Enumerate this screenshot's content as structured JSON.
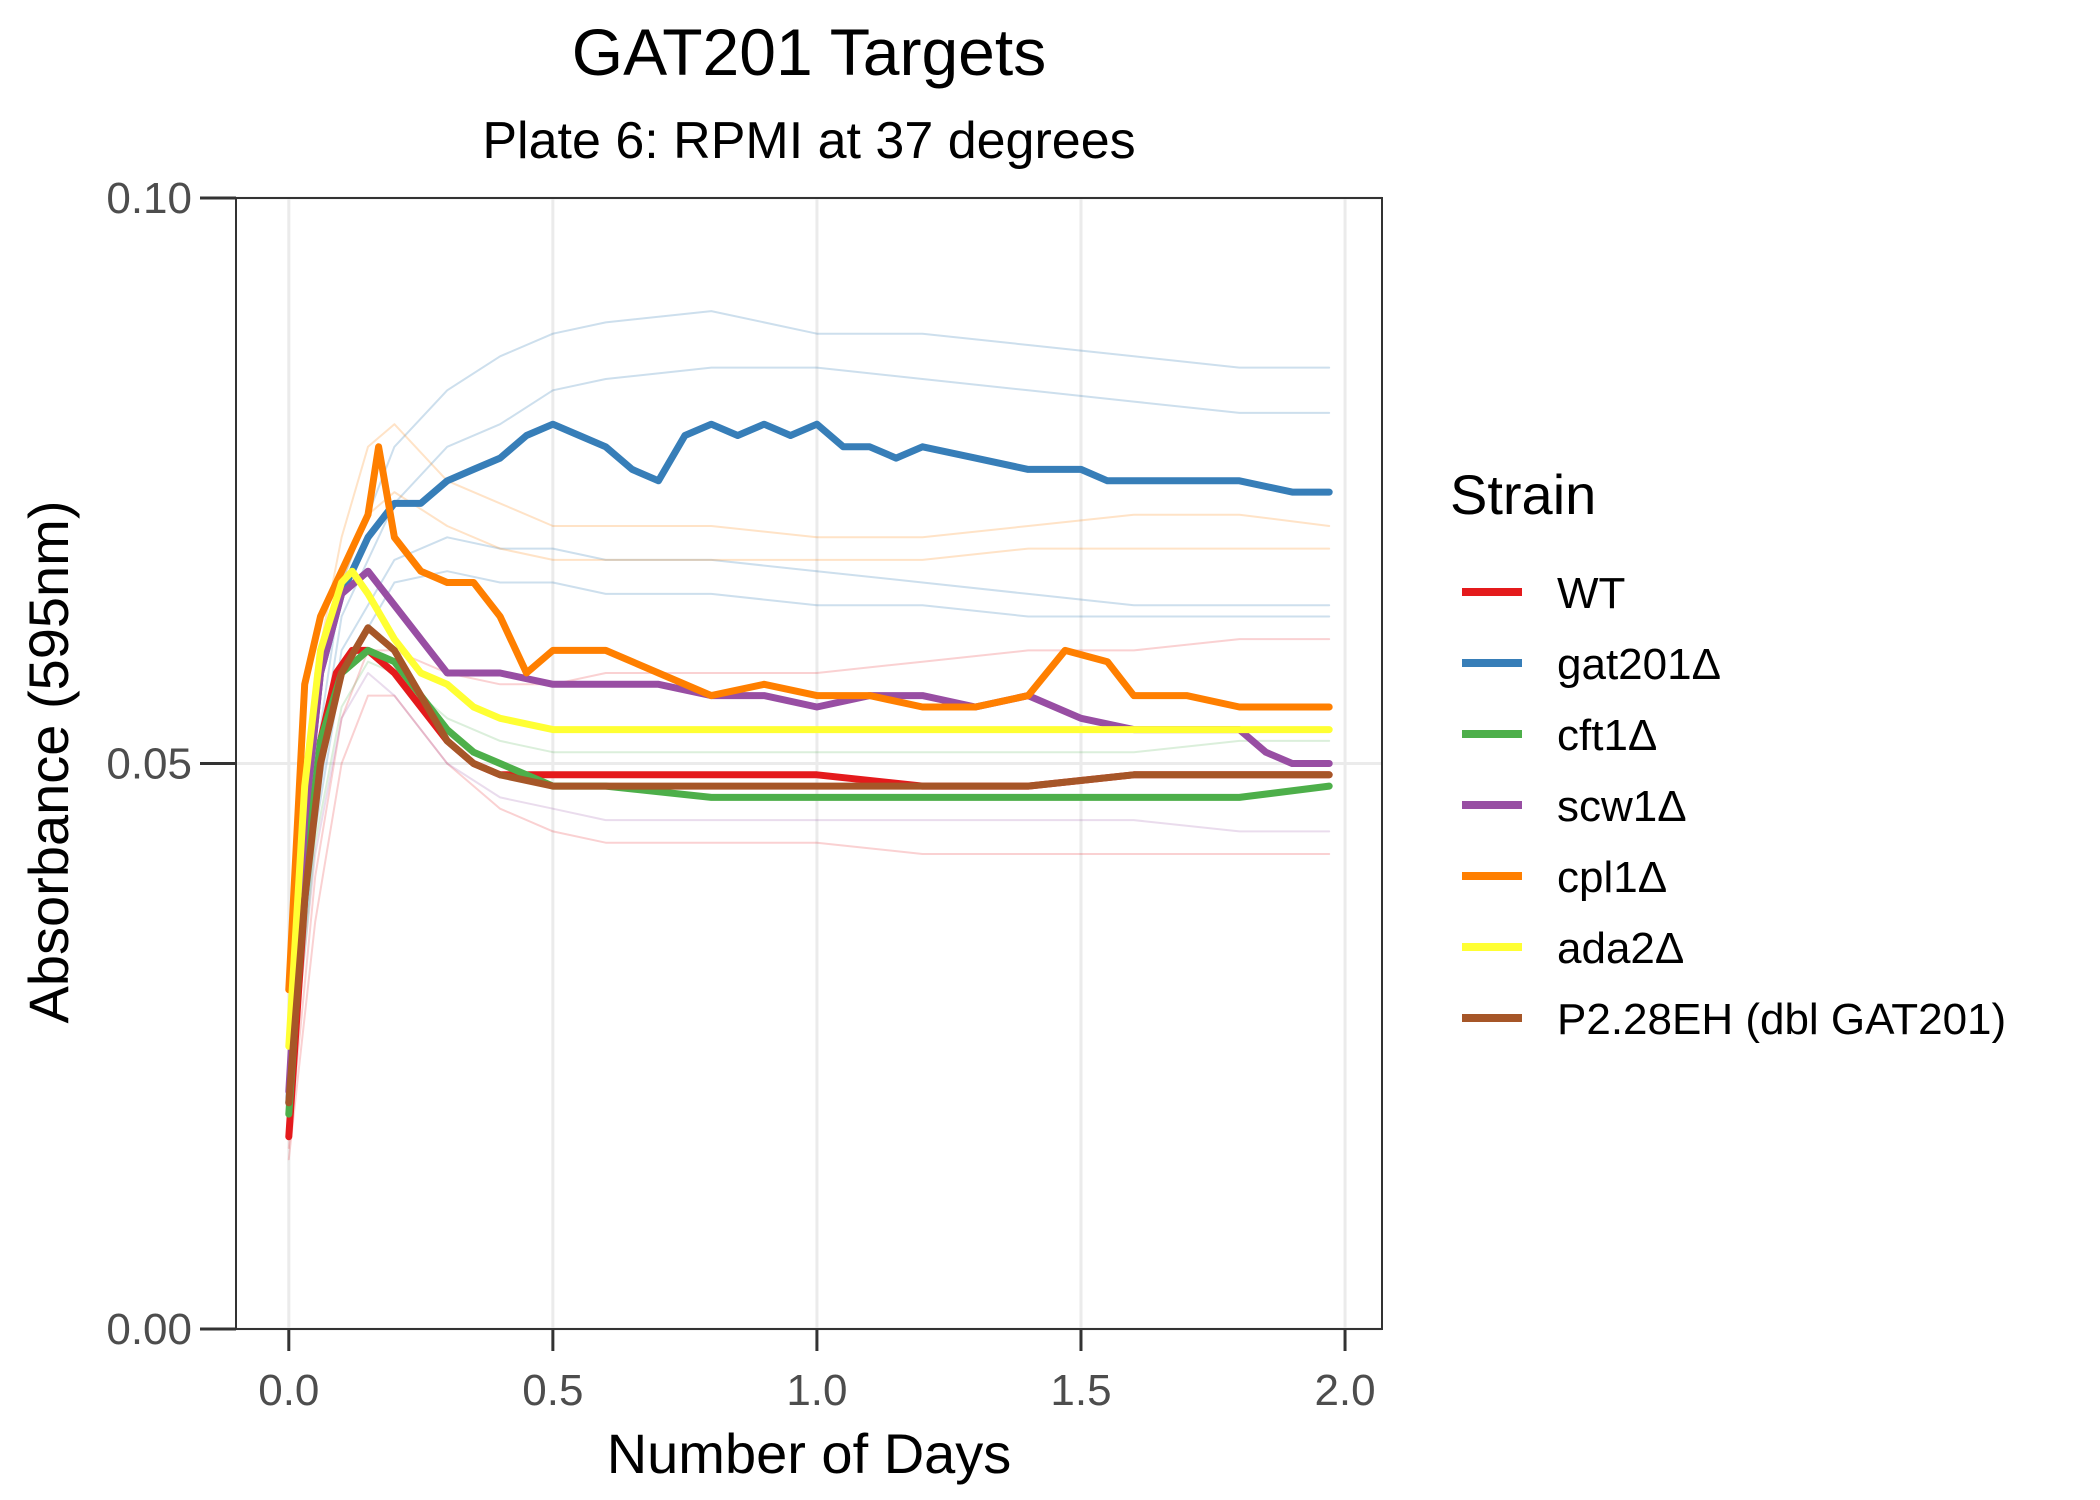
{
  "chart_data": {
    "type": "line",
    "title": "GAT201 Targets",
    "subtitle": "Plate 6: RPMI at 37 degrees",
    "xlabel": "Number of Days",
    "ylabel": "Absorbance (595nm)",
    "xlim": [
      -0.1,
      2.07
    ],
    "ylim": [
      0.0,
      0.1
    ],
    "xticks": [
      0.0,
      0.5,
      1.0,
      1.5,
      2.0
    ],
    "xtick_labels": [
      "0.0",
      "0.5",
      "1.0",
      "1.5",
      "2.0"
    ],
    "yticks": [
      0.0,
      0.05,
      0.1
    ],
    "ytick_labels": [
      "0.00",
      "0.05",
      "0.10"
    ],
    "grid": true,
    "legend": {
      "title": "Strain",
      "position": "right"
    },
    "series": [
      {
        "name": "WT",
        "color": "#e41a1c",
        "width": 7,
        "opacity": 1.0,
        "x": [
          0.0,
          0.03,
          0.06,
          0.09,
          0.12,
          0.15,
          0.2,
          0.25,
          0.3,
          0.35,
          0.4,
          0.5,
          0.6,
          0.8,
          1.0,
          1.2,
          1.4,
          1.6,
          1.8,
          1.97
        ],
        "y": [
          0.017,
          0.038,
          0.052,
          0.058,
          0.06,
          0.06,
          0.058,
          0.055,
          0.052,
          0.05,
          0.049,
          0.049,
          0.049,
          0.049,
          0.049,
          0.048,
          0.048,
          0.049,
          0.049,
          0.049
        ]
      },
      {
        "name": "gat201Δ",
        "color": "#377eb8",
        "width": 7,
        "opacity": 1.0,
        "x": [
          0.0,
          0.03,
          0.06,
          0.1,
          0.15,
          0.2,
          0.25,
          0.3,
          0.35,
          0.4,
          0.45,
          0.5,
          0.55,
          0.6,
          0.65,
          0.7,
          0.75,
          0.8,
          0.85,
          0.9,
          0.95,
          1.0,
          1.05,
          1.1,
          1.15,
          1.2,
          1.3,
          1.4,
          1.5,
          1.55,
          1.6,
          1.7,
          1.8,
          1.9,
          1.97
        ],
        "y": [
          0.02,
          0.045,
          0.058,
          0.065,
          0.07,
          0.073,
          0.073,
          0.075,
          0.076,
          0.077,
          0.079,
          0.08,
          0.079,
          0.078,
          0.076,
          0.075,
          0.079,
          0.08,
          0.079,
          0.08,
          0.079,
          0.08,
          0.078,
          0.078,
          0.077,
          0.078,
          0.077,
          0.076,
          0.076,
          0.075,
          0.075,
          0.075,
          0.075,
          0.074,
          0.074
        ]
      },
      {
        "name": "cft1Δ",
        "color": "#4daf4a",
        "width": 7,
        "opacity": 1.0,
        "x": [
          0.0,
          0.03,
          0.06,
          0.1,
          0.15,
          0.2,
          0.25,
          0.3,
          0.35,
          0.4,
          0.5,
          0.6,
          0.8,
          1.0,
          1.2,
          1.4,
          1.6,
          1.8,
          1.97
        ],
        "y": [
          0.019,
          0.04,
          0.052,
          0.058,
          0.06,
          0.059,
          0.056,
          0.053,
          0.051,
          0.05,
          0.048,
          0.048,
          0.047,
          0.047,
          0.047,
          0.047,
          0.047,
          0.047,
          0.048
        ]
      },
      {
        "name": "scw1Δ",
        "color": "#984ea3",
        "width": 7,
        "opacity": 1.0,
        "x": [
          0.0,
          0.03,
          0.06,
          0.1,
          0.15,
          0.2,
          0.25,
          0.3,
          0.35,
          0.4,
          0.5,
          0.6,
          0.7,
          0.8,
          0.9,
          1.0,
          1.1,
          1.2,
          1.3,
          1.4,
          1.5,
          1.6,
          1.75,
          1.8,
          1.85,
          1.9,
          1.97
        ],
        "y": [
          0.021,
          0.045,
          0.058,
          0.065,
          0.067,
          0.064,
          0.061,
          0.058,
          0.058,
          0.058,
          0.057,
          0.057,
          0.057,
          0.056,
          0.056,
          0.055,
          0.056,
          0.056,
          0.055,
          0.056,
          0.054,
          0.053,
          0.053,
          0.053,
          0.051,
          0.05,
          0.05
        ]
      },
      {
        "name": "cpl1Δ",
        "color": "#ff7f00",
        "width": 7,
        "opacity": 1.0,
        "x": [
          0.0,
          0.03,
          0.06,
          0.1,
          0.15,
          0.17,
          0.2,
          0.25,
          0.3,
          0.35,
          0.4,
          0.45,
          0.5,
          0.6,
          0.7,
          0.8,
          0.9,
          1.0,
          1.1,
          1.2,
          1.3,
          1.4,
          1.47,
          1.55,
          1.6,
          1.7,
          1.8,
          1.9,
          1.97
        ],
        "y": [
          0.03,
          0.057,
          0.063,
          0.067,
          0.072,
          0.078,
          0.07,
          0.067,
          0.066,
          0.066,
          0.063,
          0.058,
          0.06,
          0.06,
          0.058,
          0.056,
          0.057,
          0.056,
          0.056,
          0.055,
          0.055,
          0.056,
          0.06,
          0.059,
          0.056,
          0.056,
          0.055,
          0.055,
          0.055
        ]
      },
      {
        "name": "ada2Δ",
        "color": "#ffff33",
        "width": 7,
        "opacity": 1.0,
        "x": [
          0.0,
          0.03,
          0.06,
          0.1,
          0.12,
          0.15,
          0.2,
          0.25,
          0.3,
          0.35,
          0.4,
          0.5,
          0.6,
          0.8,
          1.0,
          1.2,
          1.4,
          1.6,
          1.8,
          1.97
        ],
        "y": [
          0.025,
          0.048,
          0.06,
          0.066,
          0.067,
          0.065,
          0.061,
          0.058,
          0.057,
          0.055,
          0.054,
          0.053,
          0.053,
          0.053,
          0.053,
          0.053,
          0.053,
          0.053,
          0.053,
          0.053
        ]
      },
      {
        "name": "P2.28EH (dbl GAT201)",
        "color": "#a65628",
        "width": 7,
        "opacity": 1.0,
        "x": [
          0.0,
          0.03,
          0.06,
          0.1,
          0.15,
          0.2,
          0.25,
          0.3,
          0.35,
          0.4,
          0.5,
          0.6,
          0.8,
          1.0,
          1.2,
          1.4,
          1.6,
          1.8,
          1.97
        ],
        "y": [
          0.02,
          0.038,
          0.05,
          0.058,
          0.062,
          0.06,
          0.056,
          0.052,
          0.05,
          0.049,
          0.048,
          0.048,
          0.048,
          0.048,
          0.048,
          0.048,
          0.049,
          0.049,
          0.049
        ]
      },
      {
        "color": "#377eb8",
        "width": 2,
        "opacity": 0.25,
        "x": [
          0.0,
          0.05,
          0.1,
          0.2,
          0.3,
          0.4,
          0.5,
          0.6,
          0.8,
          1.0,
          1.2,
          1.4,
          1.6,
          1.8,
          1.97
        ],
        "y": [
          0.022,
          0.05,
          0.066,
          0.078,
          0.083,
          0.086,
          0.088,
          0.089,
          0.09,
          0.088,
          0.088,
          0.087,
          0.086,
          0.085,
          0.085
        ]
      },
      {
        "color": "#377eb8",
        "width": 2,
        "opacity": 0.25,
        "x": [
          0.0,
          0.05,
          0.1,
          0.2,
          0.3,
          0.4,
          0.5,
          0.6,
          0.8,
          1.0,
          1.2,
          1.4,
          1.6,
          1.8,
          1.97
        ],
        "y": [
          0.021,
          0.048,
          0.063,
          0.073,
          0.078,
          0.08,
          0.083,
          0.084,
          0.085,
          0.085,
          0.084,
          0.083,
          0.082,
          0.081,
          0.081
        ]
      },
      {
        "color": "#377eb8",
        "width": 2,
        "opacity": 0.25,
        "x": [
          0.0,
          0.05,
          0.1,
          0.2,
          0.3,
          0.4,
          0.5,
          0.6,
          0.8,
          1.0,
          1.2,
          1.4,
          1.6,
          1.8,
          1.97
        ],
        "y": [
          0.02,
          0.045,
          0.06,
          0.068,
          0.07,
          0.069,
          0.069,
          0.068,
          0.068,
          0.067,
          0.066,
          0.065,
          0.064,
          0.064,
          0.064
        ]
      },
      {
        "color": "#377eb8",
        "width": 2,
        "opacity": 0.25,
        "x": [
          0.0,
          0.05,
          0.1,
          0.2,
          0.3,
          0.4,
          0.5,
          0.6,
          0.8,
          1.0,
          1.2,
          1.4,
          1.6,
          1.8,
          1.97
        ],
        "y": [
          0.02,
          0.044,
          0.058,
          0.066,
          0.067,
          0.066,
          0.066,
          0.065,
          0.065,
          0.064,
          0.064,
          0.063,
          0.063,
          0.063,
          0.063
        ]
      },
      {
        "color": "#ff7f00",
        "width": 2,
        "opacity": 0.22,
        "x": [
          0.0,
          0.05,
          0.1,
          0.15,
          0.2,
          0.3,
          0.4,
          0.5,
          0.6,
          0.8,
          1.0,
          1.2,
          1.4,
          1.6,
          1.8,
          1.97
        ],
        "y": [
          0.03,
          0.058,
          0.07,
          0.078,
          0.08,
          0.075,
          0.073,
          0.071,
          0.071,
          0.071,
          0.07,
          0.07,
          0.071,
          0.072,
          0.072,
          0.071
        ]
      },
      {
        "color": "#ff7f00",
        "width": 2,
        "opacity": 0.22,
        "x": [
          0.0,
          0.05,
          0.1,
          0.15,
          0.2,
          0.3,
          0.4,
          0.5,
          0.6,
          0.8,
          1.0,
          1.2,
          1.4,
          1.6,
          1.8,
          1.97
        ],
        "y": [
          0.03,
          0.056,
          0.066,
          0.072,
          0.074,
          0.071,
          0.069,
          0.068,
          0.068,
          0.068,
          0.068,
          0.068,
          0.069,
          0.069,
          0.069,
          0.069
        ]
      },
      {
        "color": "#e41a1c",
        "width": 2,
        "opacity": 0.2,
        "x": [
          0.0,
          0.05,
          0.1,
          0.15,
          0.2,
          0.3,
          0.4,
          0.5,
          0.6,
          0.8,
          1.0,
          1.2,
          1.4,
          1.6,
          1.8,
          1.97
        ],
        "y": [
          0.015,
          0.036,
          0.05,
          0.056,
          0.056,
          0.05,
          0.046,
          0.044,
          0.043,
          0.043,
          0.043,
          0.042,
          0.042,
          0.042,
          0.042,
          0.042
        ]
      },
      {
        "color": "#e41a1c",
        "width": 2,
        "opacity": 0.2,
        "x": [
          0.0,
          0.05,
          0.1,
          0.15,
          0.2,
          0.3,
          0.4,
          0.5,
          0.6,
          0.8,
          1.0,
          1.2,
          1.4,
          1.6,
          1.8,
          1.97
        ],
        "y": [
          0.016,
          0.04,
          0.054,
          0.06,
          0.06,
          0.058,
          0.057,
          0.057,
          0.058,
          0.058,
          0.058,
          0.059,
          0.06,
          0.06,
          0.061,
          0.061
        ]
      },
      {
        "color": "#984ea3",
        "width": 2,
        "opacity": 0.2,
        "x": [
          0.0,
          0.05,
          0.1,
          0.15,
          0.2,
          0.3,
          0.4,
          0.5,
          0.6,
          0.8,
          1.0,
          1.2,
          1.4,
          1.6,
          1.8,
          1.97
        ],
        "y": [
          0.02,
          0.042,
          0.054,
          0.058,
          0.056,
          0.05,
          0.047,
          0.046,
          0.045,
          0.045,
          0.045,
          0.045,
          0.045,
          0.045,
          0.044,
          0.044
        ]
      },
      {
        "color": "#4daf4a",
        "width": 2,
        "opacity": 0.2,
        "x": [
          0.0,
          0.05,
          0.1,
          0.15,
          0.2,
          0.3,
          0.4,
          0.5,
          0.6,
          0.8,
          1.0,
          1.2,
          1.4,
          1.6,
          1.8,
          1.97
        ],
        "y": [
          0.019,
          0.043,
          0.055,
          0.059,
          0.058,
          0.054,
          0.052,
          0.051,
          0.051,
          0.051,
          0.051,
          0.051,
          0.051,
          0.051,
          0.052,
          0.052
        ]
      }
    ]
  }
}
